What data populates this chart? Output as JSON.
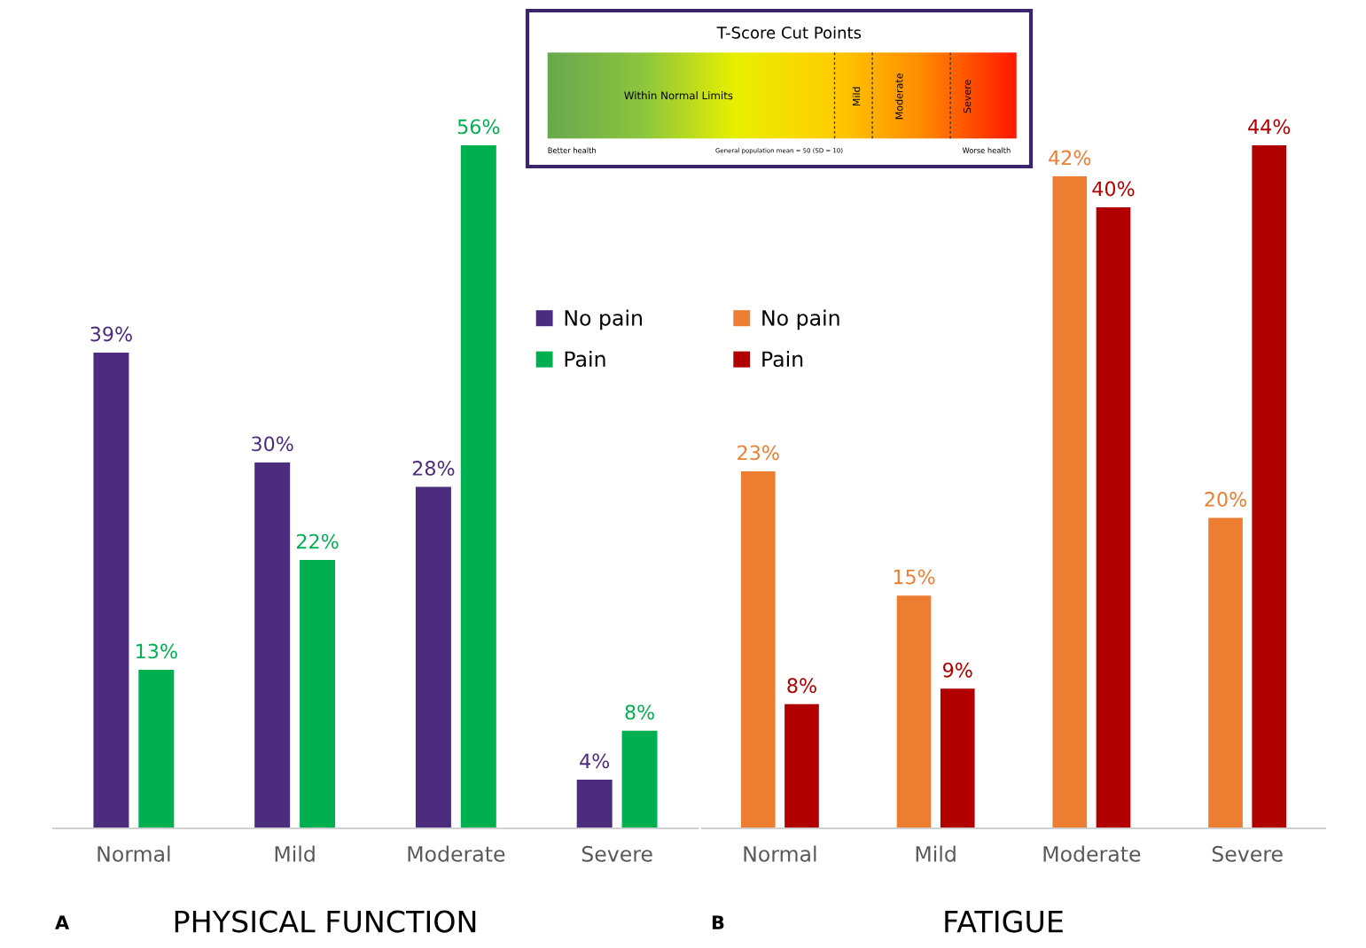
{
  "chart_data": [
    {
      "type": "other",
      "title": "T-Score Cut Points",
      "annotations": [
        "Within Normal Limits",
        "Mild",
        "Moderate",
        "Severe",
        "Better health",
        "General population mean = 50 (SD = 10)",
        "Worse health"
      ]
    },
    {
      "type": "bar",
      "title": "PHYSICAL FUNCTION",
      "annotations": [
        "A"
      ],
      "categories": [
        "Normal",
        "Mild",
        "Moderate",
        "Severe"
      ],
      "legend": "top right",
      "grid": false,
      "series": [
        {
          "name": "No pain",
          "color": "#4b2c7f",
          "values": [
            39,
            30,
            28,
            4
          ],
          "value_labels": [
            "39%",
            "30%",
            "28%",
            "4%"
          ]
        },
        {
          "name": "Pain",
          "color": "#00b050",
          "values": [
            13,
            22,
            56,
            8
          ],
          "value_labels": [
            "13%",
            "22%",
            "56%",
            "8%"
          ]
        }
      ]
    },
    {
      "type": "bar",
      "title": "FATIGUE",
      "annotations": [
        "B"
      ],
      "categories": [
        "Normal",
        "Mild",
        "Moderate",
        "Severe"
      ],
      "legend": "top left",
      "grid": false,
      "series": [
        {
          "name": "No pain",
          "color": "#ed7d31",
          "values": [
            23,
            15,
            42,
            20
          ],
          "value_labels": [
            "23%",
            "15%",
            "42%",
            "20%"
          ]
        },
        {
          "name": "Pain",
          "color": "#b00000",
          "values": [
            8,
            9,
            40,
            44
          ],
          "value_labels": [
            "8%",
            "9%",
            "40%",
            "44%"
          ]
        }
      ]
    }
  ]
}
